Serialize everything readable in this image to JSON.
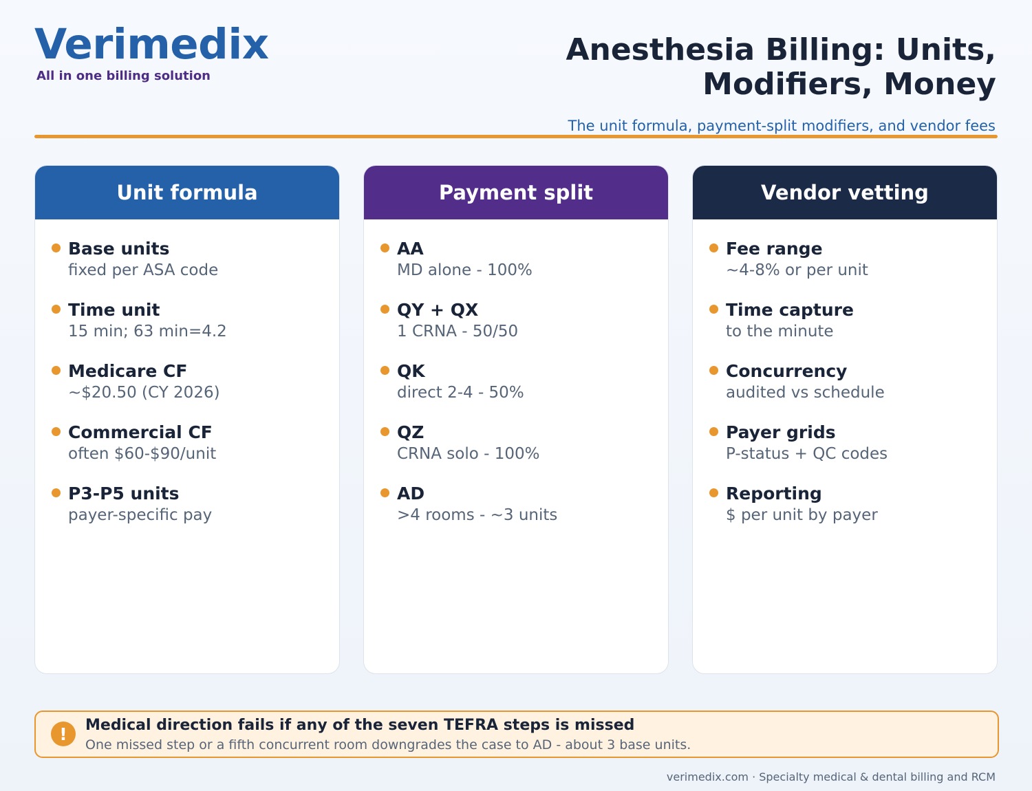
{
  "brand": {
    "name": "Verimedix",
    "tagline": "All in one billing solution"
  },
  "header": {
    "title_line1": "Anesthesia Billing: Units,",
    "title_line2": "Modifiers, Money",
    "subtitle": "The unit formula, payment-split modifiers, and vendor fees"
  },
  "colors": {
    "accent": "#e8962e",
    "blue": "#2461a8",
    "purple": "#522d8a",
    "navy": "#1b2a47"
  },
  "cards": [
    {
      "title": "Unit formula",
      "items": [
        {
          "label": "Base units",
          "desc": "fixed per ASA code"
        },
        {
          "label": "Time unit",
          "desc": "15 min; 63 min=4.2"
        },
        {
          "label": "Medicare CF",
          "desc": "~$20.50 (CY 2026)"
        },
        {
          "label": "Commercial CF",
          "desc": "often $60-$90/unit"
        },
        {
          "label": "P3-P5 units",
          "desc": "payer-specific pay"
        }
      ]
    },
    {
      "title": "Payment split",
      "items": [
        {
          "label": "AA",
          "desc": "MD alone - 100%"
        },
        {
          "label": "QY + QX",
          "desc": "1 CRNA - 50/50"
        },
        {
          "label": "QK",
          "desc": "direct 2-4 - 50%"
        },
        {
          "label": "QZ",
          "desc": "CRNA solo - 100%"
        },
        {
          "label": "AD",
          "desc": ">4 rooms - ~3 units"
        }
      ]
    },
    {
      "title": "Vendor vetting",
      "items": [
        {
          "label": "Fee range",
          "desc": "~4-8% or per unit"
        },
        {
          "label": "Time capture",
          "desc": "to the minute"
        },
        {
          "label": "Concurrency",
          "desc": "audited vs schedule"
        },
        {
          "label": "Payer grids",
          "desc": "P-status + QC codes"
        },
        {
          "label": "Reporting",
          "desc": "$ per unit by payer"
        }
      ]
    }
  ],
  "callout": {
    "icon": "exclamation-icon",
    "icon_glyph": "!",
    "title": "Medical direction fails if any of the seven TEFRA steps is missed",
    "text": "One missed step or a fifth concurrent room downgrades the case to AD - about 3 base units."
  },
  "footer": {
    "text": "verimedix.com · Specialty medical & dental billing and RCM"
  }
}
